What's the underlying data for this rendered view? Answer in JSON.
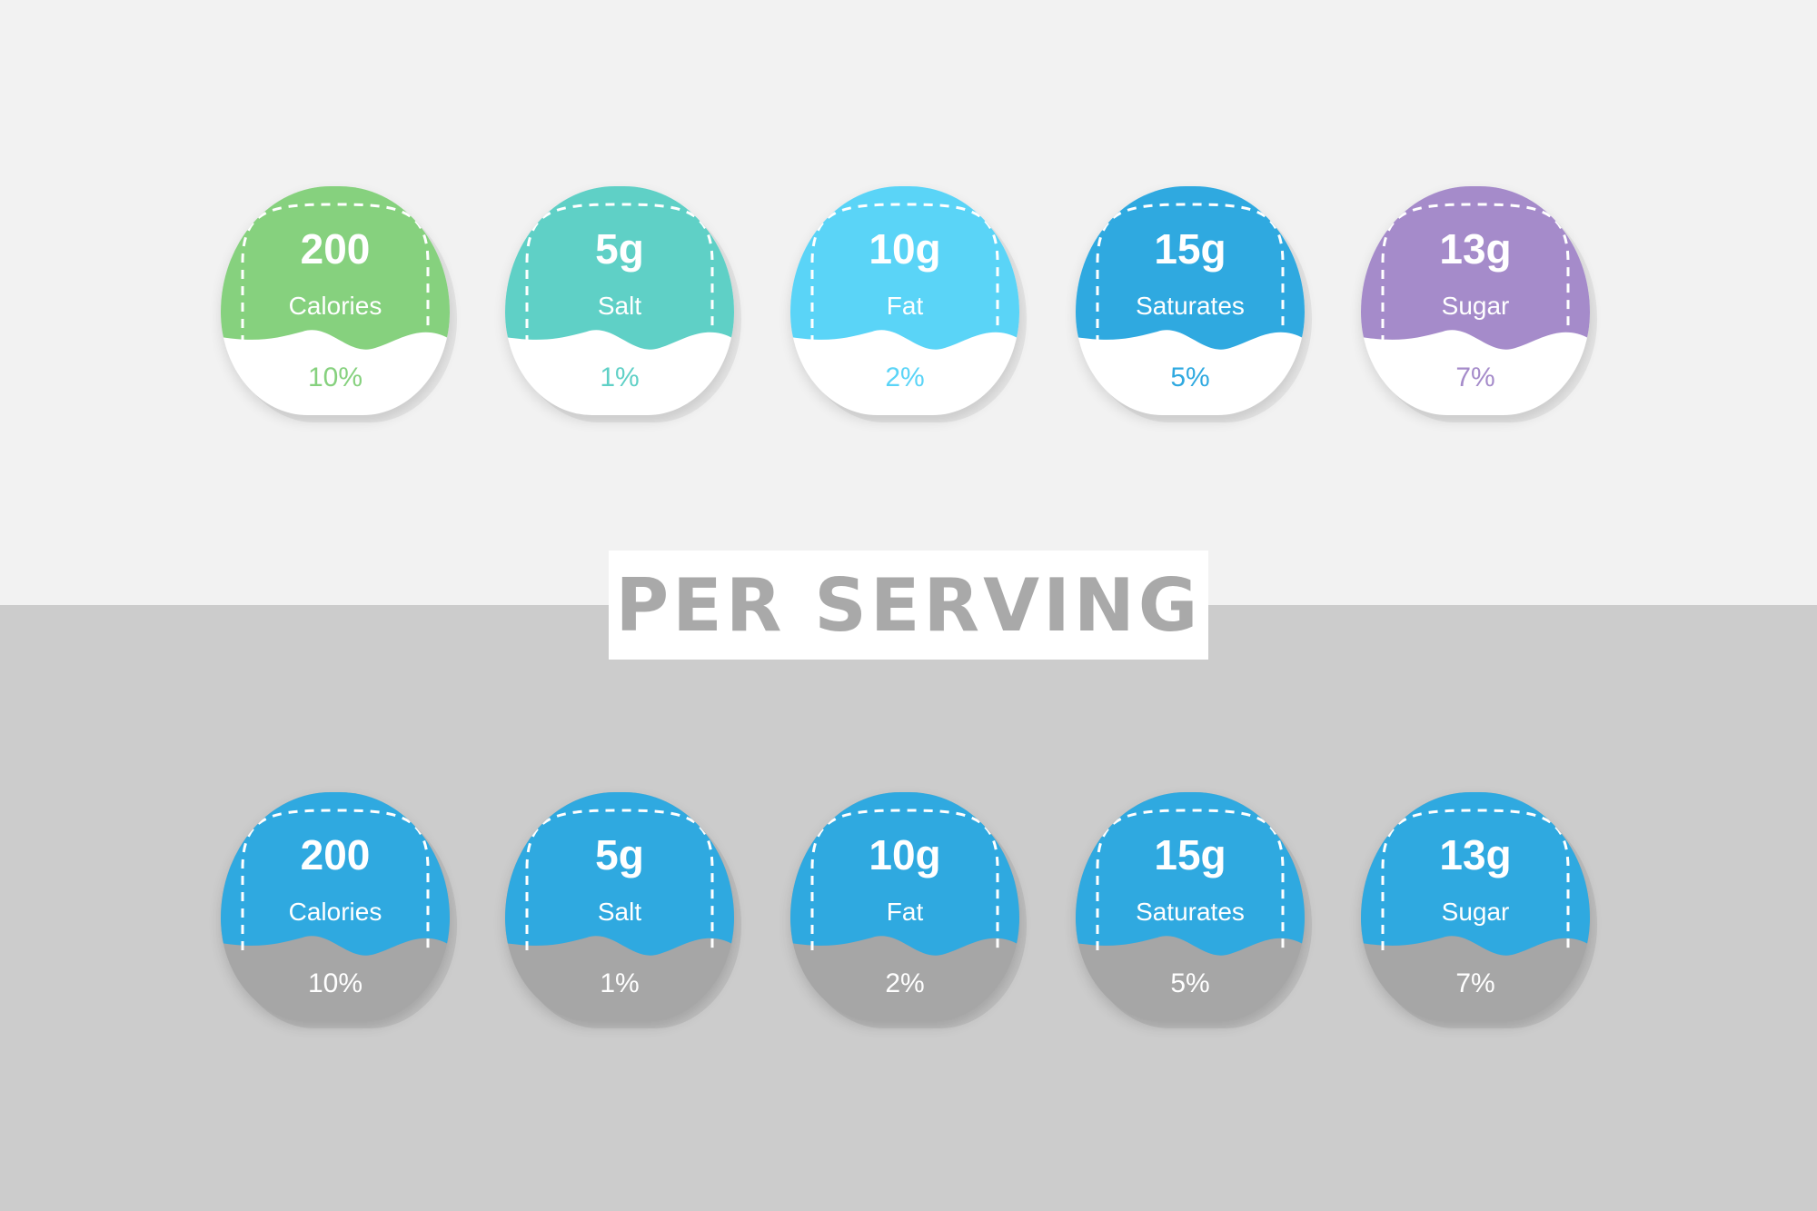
{
  "banner": {
    "title": "PER SERVING"
  },
  "colors": {
    "top_background": "#f2f2f2",
    "bottom_background": "#cccccc",
    "bottom_badge_fill": "#2fa9e0",
    "bottom_badge_base": "#a6a6a6"
  },
  "top_row": [
    {
      "value": "200",
      "label": "Calories",
      "percent": "10%",
      "color": "#86d17e"
    },
    {
      "value": "5g",
      "label": "Salt",
      "percent": "1%",
      "color": "#5fd0c6"
    },
    {
      "value": "10g",
      "label": "Fat",
      "percent": "2%",
      "color": "#5ad4f7"
    },
    {
      "value": "15g",
      "label": "Saturates",
      "percent": "5%",
      "color": "#2fa9e0"
    },
    {
      "value": "13g",
      "label": "Sugar",
      "percent": "7%",
      "color": "#a58bca"
    }
  ],
  "bottom_row": [
    {
      "value": "200",
      "label": "Calories",
      "percent": "10%"
    },
    {
      "value": "5g",
      "label": "Salt",
      "percent": "1%"
    },
    {
      "value": "10g",
      "label": "Fat",
      "percent": "2%"
    },
    {
      "value": "15g",
      "label": "Saturates",
      "percent": "5%"
    },
    {
      "value": "13g",
      "label": "Sugar",
      "percent": "7%"
    }
  ]
}
